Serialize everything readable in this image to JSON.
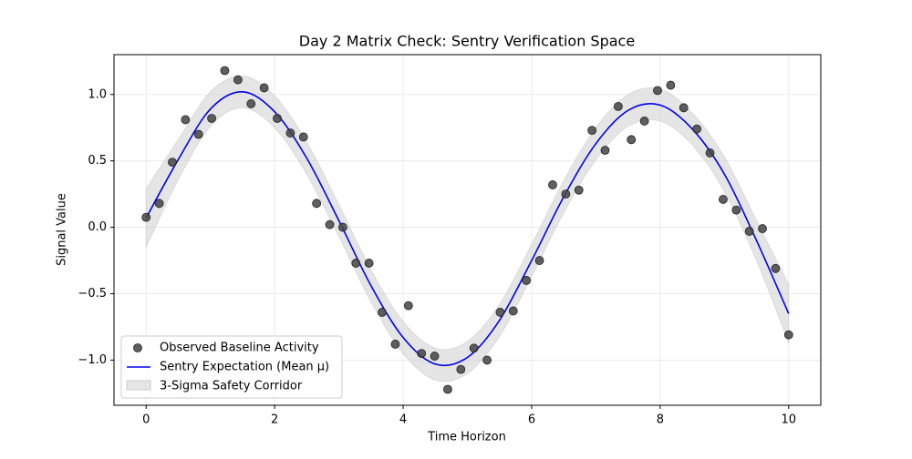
{
  "chart_data": {
    "type": "scatter",
    "title": "Day 2 Matrix Check: Sentry Verification Space",
    "xlabel": "Time Horizon",
    "ylabel": "Signal Value",
    "xlim": [
      -0.5,
      10.5
    ],
    "ylim": [
      -1.34,
      1.3
    ],
    "xticks": [
      0,
      2,
      4,
      6,
      8,
      10
    ],
    "yticks": [
      {
        "value": -1,
        "label": "−1.0"
      },
      {
        "value": -0.5,
        "label": "−0.5"
      },
      {
        "value": 0,
        "label": "0.0"
      },
      {
        "value": 0.5,
        "label": "0.5"
      },
      {
        "value": 1,
        "label": "1.0"
      }
    ],
    "grid": true,
    "legend": "lower left",
    "points": {
      "name": "Observed Baseline Activity",
      "color": "#444444",
      "x": [
        0,
        0.204,
        0.408,
        0.612,
        0.816,
        1.02,
        1.224,
        1.429,
        1.633,
        1.837,
        2.041,
        2.245,
        2.449,
        2.653,
        2.857,
        3.061,
        3.265,
        3.469,
        3.673,
        3.878,
        4.082,
        4.286,
        4.49,
        4.694,
        4.898,
        5.102,
        5.306,
        5.51,
        5.714,
        5.918,
        6.122,
        6.327,
        6.531,
        6.735,
        6.939,
        7.143,
        7.347,
        7.551,
        7.755,
        7.959,
        8.163,
        8.367,
        8.571,
        8.776,
        8.98,
        9.184,
        9.388,
        9.592,
        9.796,
        10
      ],
      "y": [
        0.075,
        0.18,
        0.49,
        0.81,
        0.7,
        0.82,
        1.18,
        1.11,
        0.93,
        1.05,
        0.82,
        0.71,
        0.68,
        0.18,
        0.02,
        0,
        -0.27,
        -0.27,
        -0.64,
        -0.88,
        -0.59,
        -0.95,
        -0.97,
        -1.22,
        -1.07,
        -0.91,
        -1,
        -0.64,
        -0.63,
        -0.4,
        -0.25,
        0.32,
        0.25,
        0.28,
        0.73,
        0.58,
        0.91,
        0.66,
        0.8,
        1.03,
        1.07,
        0.9,
        0.74,
        0.56,
        0.21,
        0.13,
        -0.03,
        -0.01,
        -0.31,
        -0.81
      ]
    },
    "line": {
      "name": "Sentry Expectation (Mean μ)",
      "color": "#0000ee",
      "x": [
        0,
        0.5,
        1,
        1.5,
        2,
        2.5,
        3,
        3.5,
        4,
        4.5,
        5,
        5.5,
        6,
        6.5,
        7,
        7.5,
        8,
        8.5,
        9,
        9.5,
        10
      ],
      "y": [
        0.07,
        0.51,
        0.89,
        1.02,
        0.87,
        0.52,
        0.05,
        -0.44,
        -0.83,
        -1.03,
        -0.98,
        -0.7,
        -0.25,
        0.23,
        0.63,
        0.88,
        0.92,
        0.74,
        0.4,
        -0.1,
        -0.65
      ]
    },
    "band": {
      "name": "3-Sigma Safety Corridor",
      "color": "#cccccc",
      "x": [
        0,
        0.5,
        1,
        1.5,
        2,
        2.5,
        3,
        3.5,
        4,
        4.5,
        5,
        5.5,
        6,
        6.5,
        7,
        7.5,
        8,
        8.5,
        9,
        9.5,
        10
      ],
      "upper": [
        0.29,
        0.66,
        1.02,
        1.14,
        0.99,
        0.64,
        0.17,
        -0.32,
        -0.71,
        -0.91,
        -0.86,
        -0.58,
        -0.13,
        0.35,
        0.75,
        1,
        1.04,
        0.86,
        0.53,
        0.05,
        -0.43
      ],
      "lower": [
        -0.15,
        0.36,
        0.76,
        0.9,
        0.75,
        0.4,
        -0.07,
        -0.56,
        -0.95,
        -1.15,
        -1.1,
        -0.82,
        -0.37,
        0.11,
        0.51,
        0.76,
        0.8,
        0.62,
        0.27,
        -0.25,
        -0.87
      ]
    }
  }
}
